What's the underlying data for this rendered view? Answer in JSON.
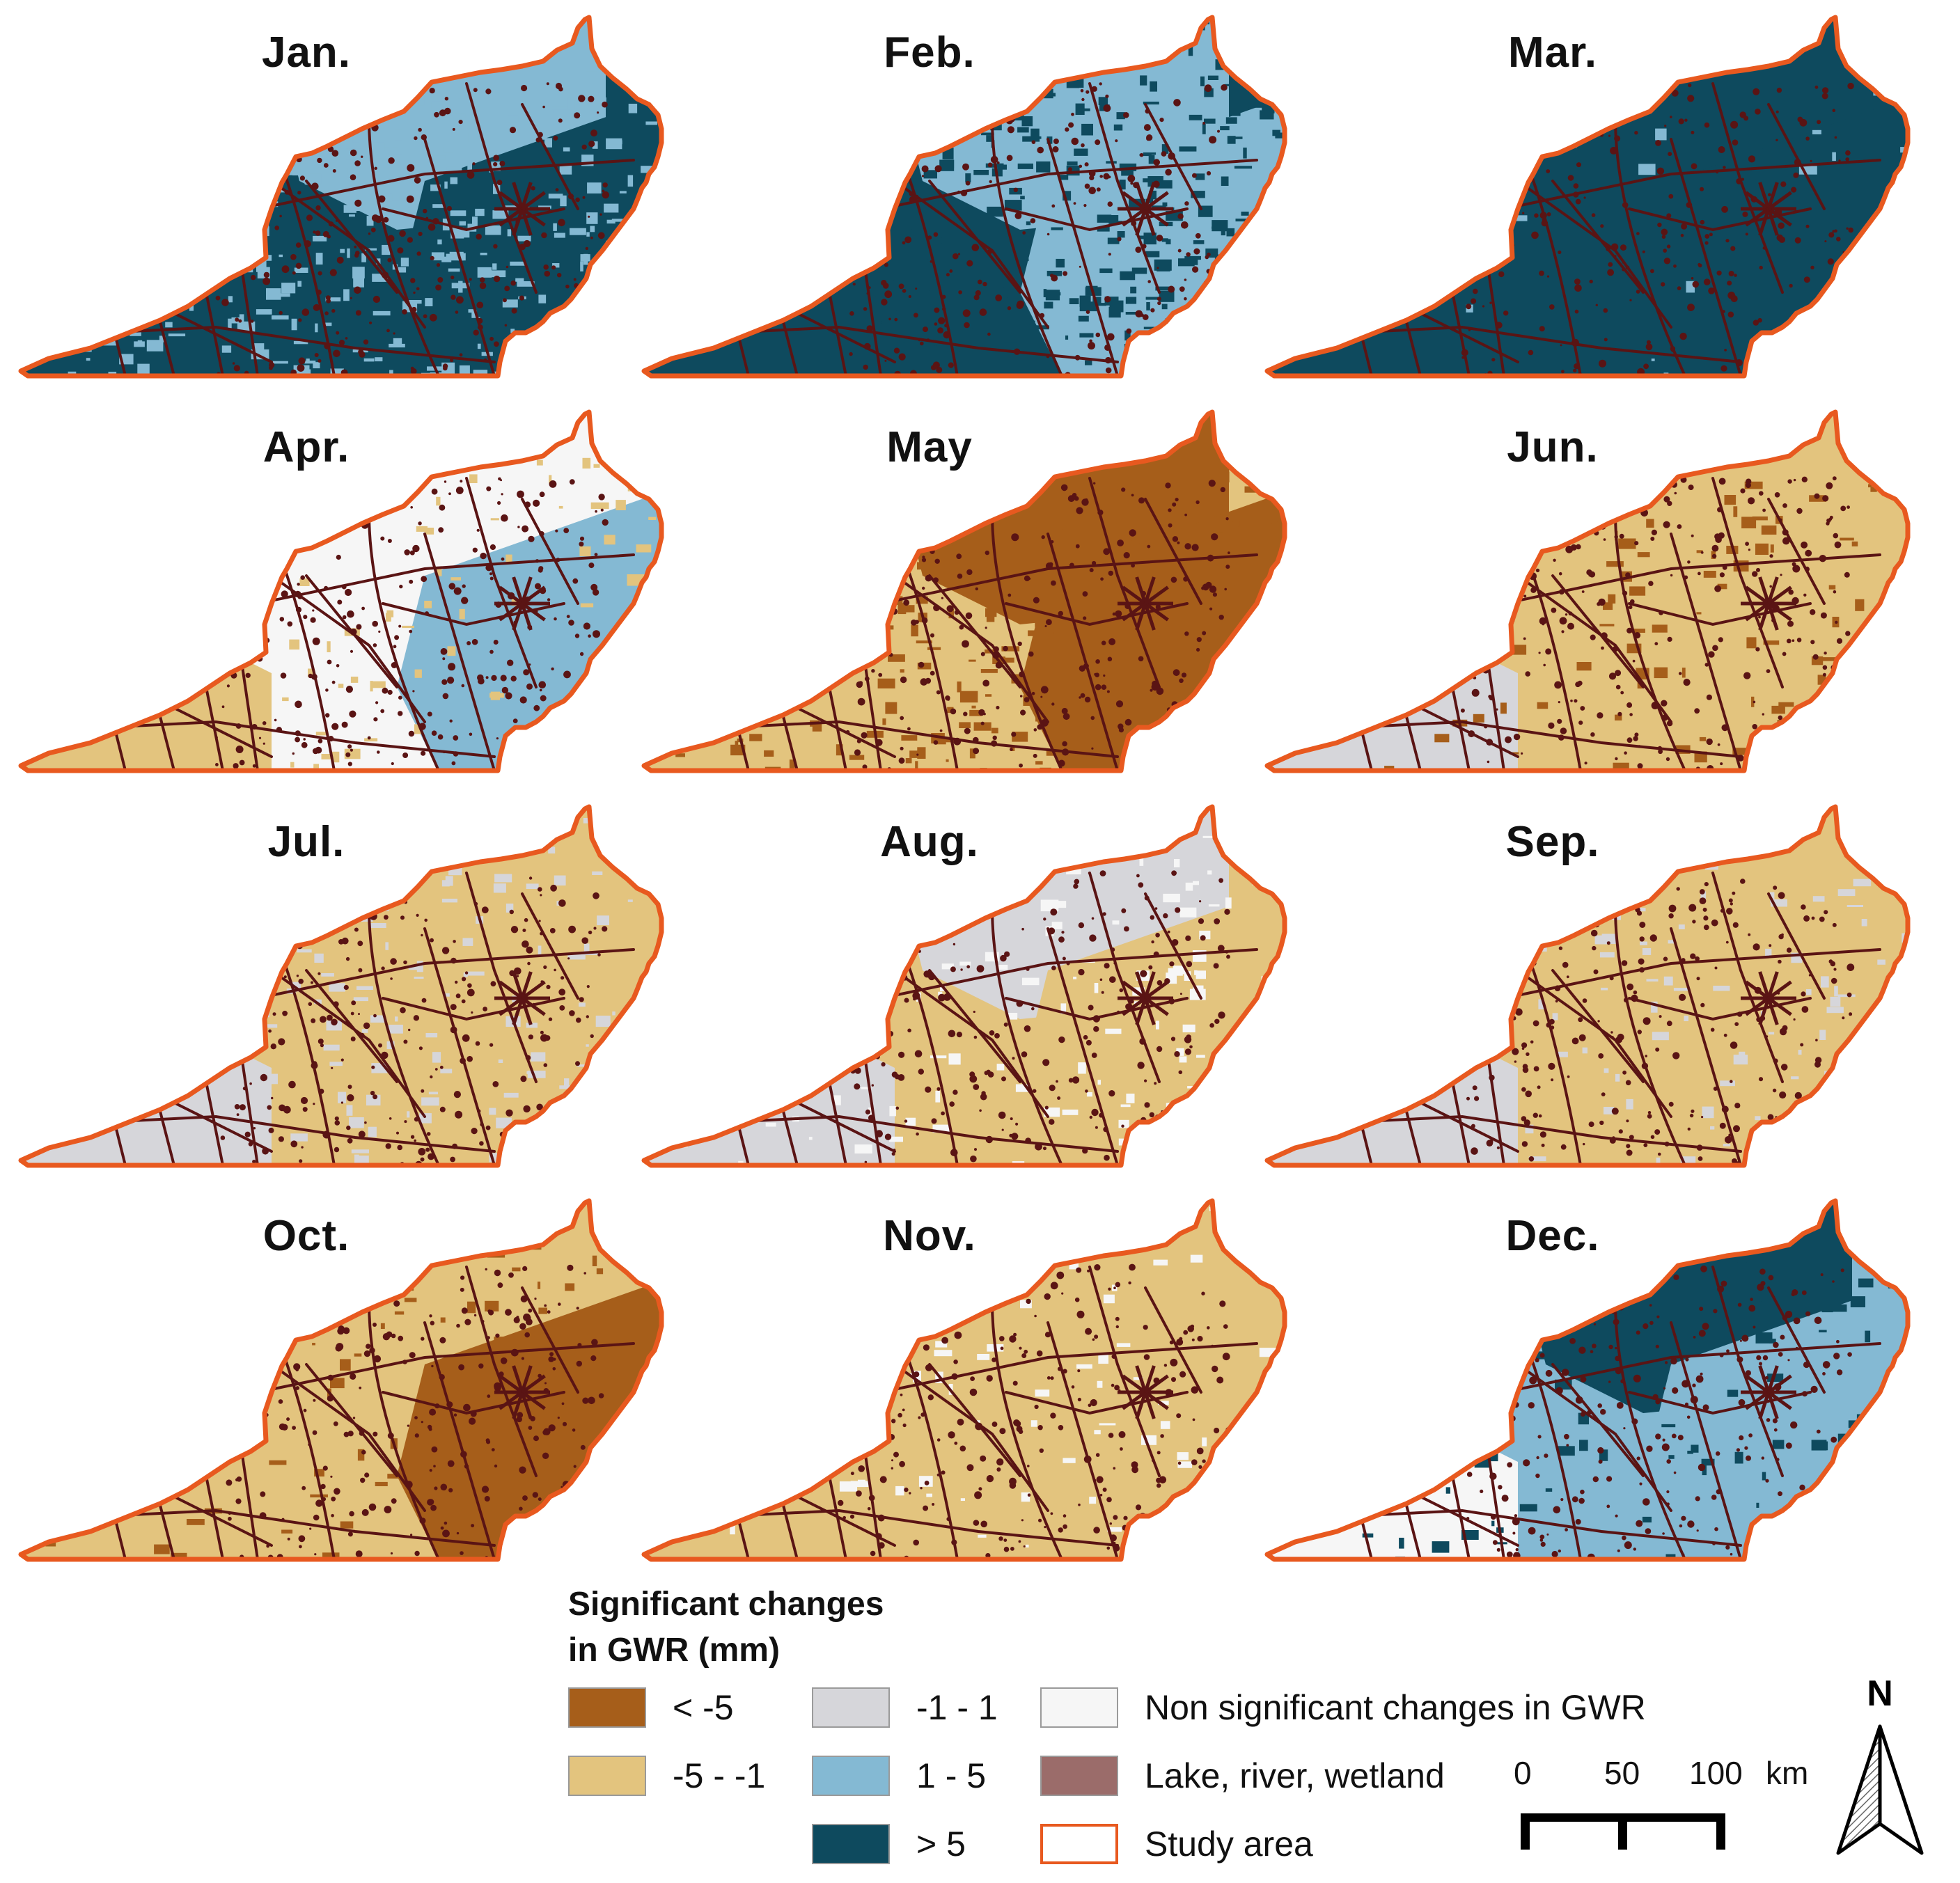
{
  "colors": {
    "lt_neg5": "#a65e1a",
    "neg5_neg1": "#e3c47e",
    "neg1_1": "#d6d6da",
    "pos1_5": "#84b9d3",
    "gt_5": "#0e4a5e",
    "non_significant": "#f6f6f6",
    "water": "#9b6c6a",
    "study_area": "#e8591f",
    "river_dark": "#5a1414"
  },
  "maps": [
    {
      "month": "Jan.",
      "pattern": {
        "base": "gt_5",
        "west": "gt_5",
        "north": "pos1_5",
        "east": "gt_5",
        "patch": "pos1_5",
        "patch_frac": 0.35
      }
    },
    {
      "month": "Feb.",
      "pattern": {
        "base": "gt_5",
        "west": "gt_5",
        "north": "pos1_5",
        "east": "pos1_5",
        "patch": "gt_5",
        "patch_frac": 0.45
      }
    },
    {
      "month": "Mar.",
      "pattern": {
        "base": "gt_5",
        "west": "gt_5",
        "north": "gt_5",
        "east": "gt_5",
        "patch": "pos1_5",
        "patch_frac": 0.02
      }
    },
    {
      "month": "Apr.",
      "pattern": {
        "base": "non_significant",
        "west": "neg5_neg1",
        "north": "non_significant",
        "east": "pos1_5",
        "patch": "neg5_neg1",
        "patch_frac": 0.12
      }
    },
    {
      "month": "May",
      "pattern": {
        "base": "neg5_neg1",
        "west": "neg5_neg1",
        "north": "lt_neg5",
        "east": "lt_neg5",
        "patch": "lt_neg5",
        "patch_frac": 0.3
      }
    },
    {
      "month": "Jun.",
      "pattern": {
        "base": "neg5_neg1",
        "west": "neg1_1",
        "north": "neg5_neg1",
        "east": "neg5_neg1",
        "patch": "lt_neg5",
        "patch_frac": 0.1
      }
    },
    {
      "month": "Jul.",
      "pattern": {
        "base": "neg5_neg1",
        "west": "neg1_1",
        "north": "neg5_neg1",
        "east": "neg5_neg1",
        "patch": "neg1_1",
        "patch_frac": 0.15
      }
    },
    {
      "month": "Aug.",
      "pattern": {
        "base": "neg5_neg1",
        "west": "neg1_1",
        "north": "neg1_1",
        "east": "neg5_neg1",
        "patch": "non_significant",
        "patch_frac": 0.15
      }
    },
    {
      "month": "Sep.",
      "pattern": {
        "base": "neg5_neg1",
        "west": "neg1_1",
        "north": "neg5_neg1",
        "east": "neg5_neg1",
        "patch": "neg1_1",
        "patch_frac": 0.12
      }
    },
    {
      "month": "Oct.",
      "pattern": {
        "base": "neg5_neg1",
        "west": "neg5_neg1",
        "north": "neg5_neg1",
        "east": "lt_neg5",
        "patch": "lt_neg5",
        "patch_frac": 0.08
      }
    },
    {
      "month": "Nov.",
      "pattern": {
        "base": "neg5_neg1",
        "west": "neg5_neg1",
        "north": "neg5_neg1",
        "east": "neg5_neg1",
        "patch": "non_significant",
        "patch_frac": 0.1
      }
    },
    {
      "month": "Dec.",
      "pattern": {
        "base": "pos1_5",
        "west": "non_significant",
        "north": "gt_5",
        "east": "pos1_5",
        "patch": "gt_5",
        "patch_frac": 0.12
      }
    }
  ],
  "legend": {
    "title_line1": "Significant changes",
    "title_line2": "in GWR (mm)",
    "items": [
      {
        "label": "< -5",
        "color_key": "lt_neg5"
      },
      {
        "label": "-5 - -1",
        "color_key": "neg5_neg1"
      },
      {
        "label": "-1 - 1",
        "color_key": "neg1_1"
      },
      {
        "label": "1 - 5",
        "color_key": "pos1_5"
      },
      {
        "label": "> 5",
        "color_key": "gt_5"
      },
      {
        "label": "Non significant changes in GWR",
        "color_key": "non_significant"
      },
      {
        "label": "Lake, river, wetland",
        "color_key": "water"
      },
      {
        "label": "Study area",
        "color_key": "study_area"
      }
    ]
  },
  "scalebar": {
    "ticks": [
      "0",
      "50",
      "100"
    ],
    "unit": "km"
  },
  "north_arrow": {
    "label": "N"
  }
}
